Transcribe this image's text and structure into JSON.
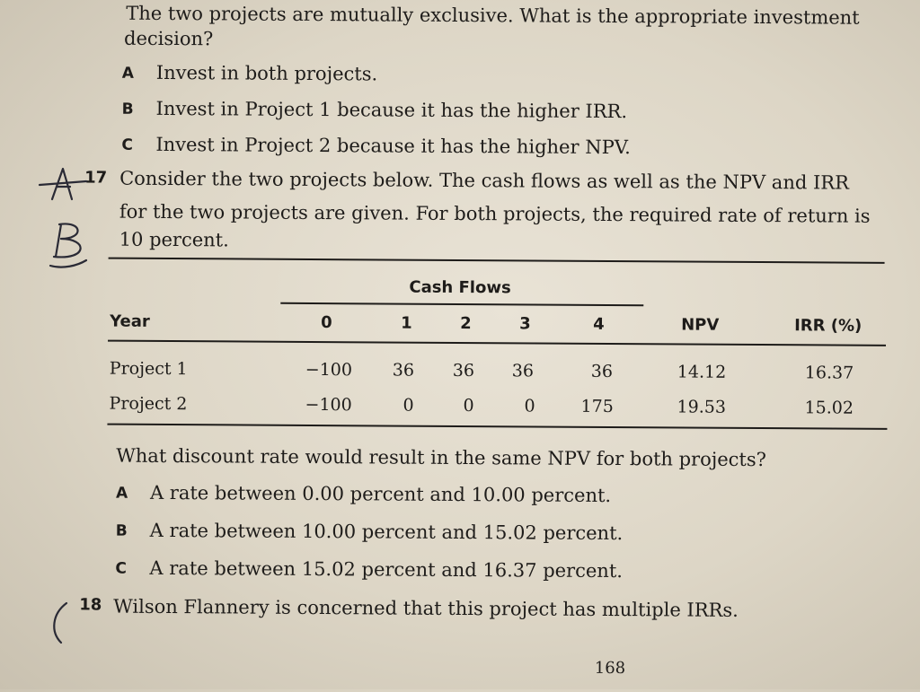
{
  "intro": {
    "line1": "The two projects are mutually exclusive. What is the appropriate investment",
    "line2": "decision?"
  },
  "q16_options": [
    {
      "letter": "A",
      "text": "Invest in both projects."
    },
    {
      "letter": "B",
      "text": "Invest in Project 1 because it has the higher IRR."
    },
    {
      "letter": "C",
      "text": "Invest in Project 2 because it has the higher NPV."
    }
  ],
  "q17": {
    "number": "17",
    "line1": "Consider the two projects below. The cash flows as well as the NPV and IRR",
    "line2": "for the two projects are given. For both projects, the required rate of return is",
    "line3": "10 percent."
  },
  "table": {
    "group_header": "Cash Flows",
    "headers": {
      "year": "Year",
      "y0": "0",
      "y1": "1",
      "y2": "2",
      "y3": "3",
      "y4": "4",
      "npv": "NPV",
      "irr": "IRR (%)"
    },
    "rows": [
      {
        "name": "Project 1",
        "c0": "−100",
        "c1": "36",
        "c2": "36",
        "c3": "36",
        "c4": "36",
        "npv": "14.12",
        "irr": "16.37"
      },
      {
        "name": "Project 2",
        "c0": "−100",
        "c1": "0",
        "c2": "0",
        "c3": "0",
        "c4": "175",
        "npv": "19.53",
        "irr": "15.02"
      }
    ]
  },
  "q17_question": "What discount rate would result in the same NPV for both projects?",
  "q17_options": [
    {
      "letter": "A",
      "text": "A rate between 0.00 percent and 10.00 percent."
    },
    {
      "letter": "B",
      "text": "A rate between 10.00 percent and 15.02 percent."
    },
    {
      "letter": "C",
      "text": "A rate between 15.02 percent and 16.37 percent."
    }
  ],
  "q18": {
    "number": "18",
    "text": "Wilson Flannery is concerned that this project has multiple IRRs."
  },
  "page_number": "168",
  "ink_color": "#2a2a35"
}
